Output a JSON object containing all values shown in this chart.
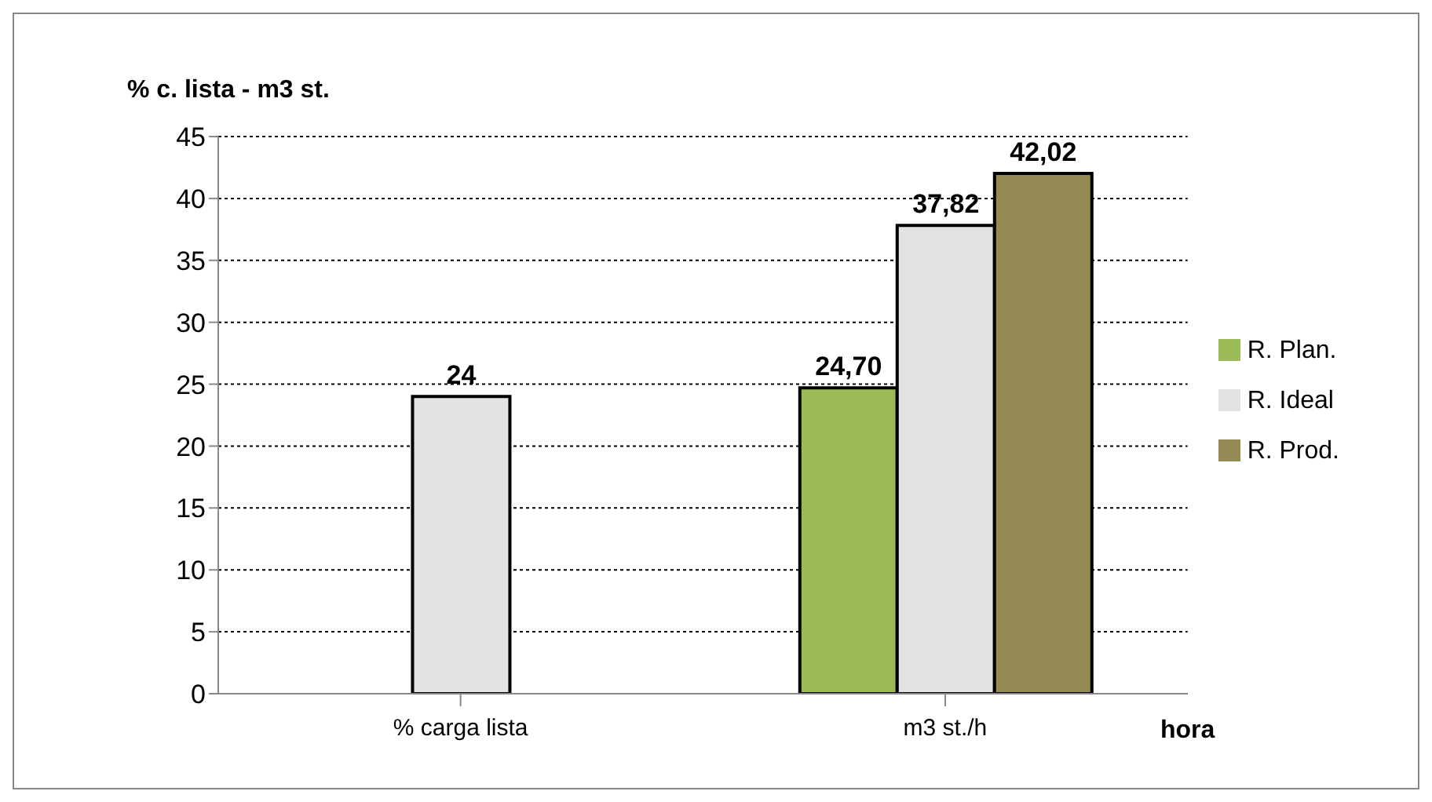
{
  "chart_data": {
    "type": "bar",
    "ylabel": "% c. lista - m3 st.",
    "xlabel": "hora",
    "categories": [
      "% carga lista",
      "m3 st./h"
    ],
    "series": [
      {
        "name": "R. Plan.",
        "color": "#9bbb59",
        "values": [
          null,
          24.7
        ],
        "value_labels": [
          null,
          "24,70"
        ]
      },
      {
        "name": "R. Ideal",
        "color": "#e3e3e3",
        "values": [
          24,
          37.82
        ],
        "value_labels": [
          "24",
          "37,82"
        ]
      },
      {
        "name": "R. Prod.",
        "color": "#948a54",
        "values": [
          null,
          42.02
        ],
        "value_labels": [
          null,
          "42,02"
        ]
      }
    ],
    "ylim": [
      0,
      45
    ],
    "yticks": [
      0,
      5,
      10,
      15,
      20,
      25,
      30,
      35,
      40,
      45
    ],
    "grid": "y",
    "legend": "right"
  }
}
